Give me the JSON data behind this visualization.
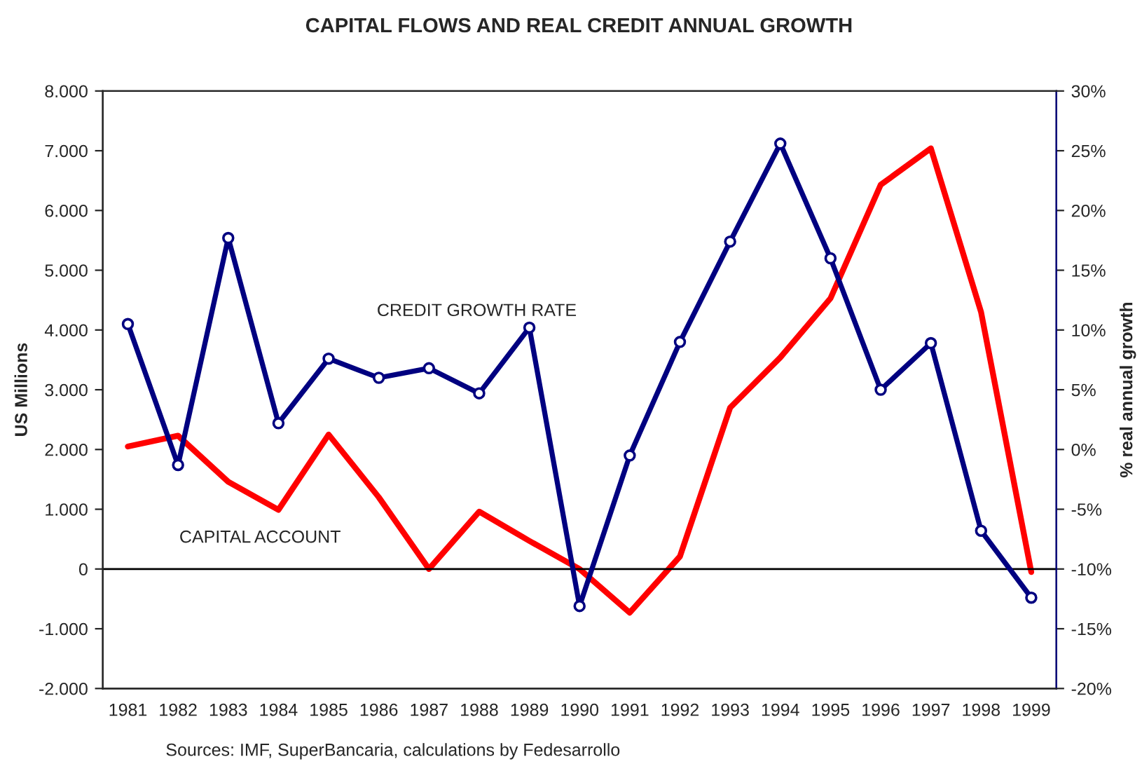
{
  "chart_data": {
    "type": "line",
    "title": "CAPITAL FLOWS AND REAL CREDIT ANNUAL GROWTH",
    "ylabel": "US Millions",
    "y2label": "% real annual growth",
    "categories": [
      "1981",
      "1982",
      "1983",
      "1984",
      "1985",
      "1986",
      "1987",
      "1988",
      "1989",
      "1990",
      "1991",
      "1992",
      "1993",
      "1994",
      "1995",
      "1996",
      "1997",
      "1998",
      "1999"
    ],
    "series": [
      {
        "color": "#ff0000",
        "marker": "none",
        "values": [
          2050,
          2230,
          1460,
          990,
          2250,
          1200,
          0,
          960,
          470,
          0,
          -730,
          210,
          2700,
          3540,
          4530,
          6430,
          7040,
          4300,
          -50
        ]
      },
      {
        "color": "#000080",
        "axis": "y2",
        "marker": "circle",
        "values": [
          10.5,
          -1.3,
          17.7,
          2.2,
          7.6,
          6.0,
          6.8,
          4.7,
          10.2,
          -13.1,
          -0.5,
          9.0,
          17.4,
          25.6,
          16.0,
          5.0,
          8.9,
          -6.8,
          -12.4
        ]
      }
    ],
    "ylim": [
      -2000,
      8000
    ],
    "yticks": [
      {
        "value": -2000,
        "label": "-2.000"
      },
      {
        "value": -1000,
        "label": "-1.000"
      },
      0,
      {
        "value": 1000,
        "label": "1.000"
      },
      {
        "value": 2000,
        "label": "2.000"
      },
      {
        "value": 3000,
        "label": "3.000"
      },
      {
        "value": 4000,
        "label": "4.000"
      },
      {
        "value": 5000,
        "label": "5.000"
      },
      {
        "value": 6000,
        "label": "6.000"
      },
      {
        "value": 7000,
        "label": "7.000"
      },
      {
        "value": 8000,
        "label": "8.000"
      }
    ],
    "y2lim": [
      -20,
      30
    ],
    "y2ticks": [
      {
        "value": -20,
        "label": "-20%"
      },
      {
        "value": -15,
        "label": "-15%"
      },
      {
        "value": -10,
        "label": "-10%"
      },
      {
        "value": -5,
        "label": "-5%"
      },
      {
        "value": 0,
        "label": "0%"
      },
      {
        "value": 5,
        "label": "5%"
      },
      {
        "value": 10,
        "label": "10%"
      },
      {
        "value": 15,
        "label": "15%"
      },
      {
        "value": 20,
        "label": "20%"
      },
      {
        "value": 25,
        "label": "25%"
      },
      {
        "value": 30,
        "label": "30%"
      }
    ],
    "annotations": [
      "CREDIT GROWTH RATE",
      "CAPITAL ACCOUNT",
      "Sources: IMF, SuperBancaria, calculations by Fedesarrollo"
    ],
    "ref_lines": [
      {
        "axis": "y",
        "value": 0,
        "color": "#000000"
      }
    ],
    "legend": false
  }
}
